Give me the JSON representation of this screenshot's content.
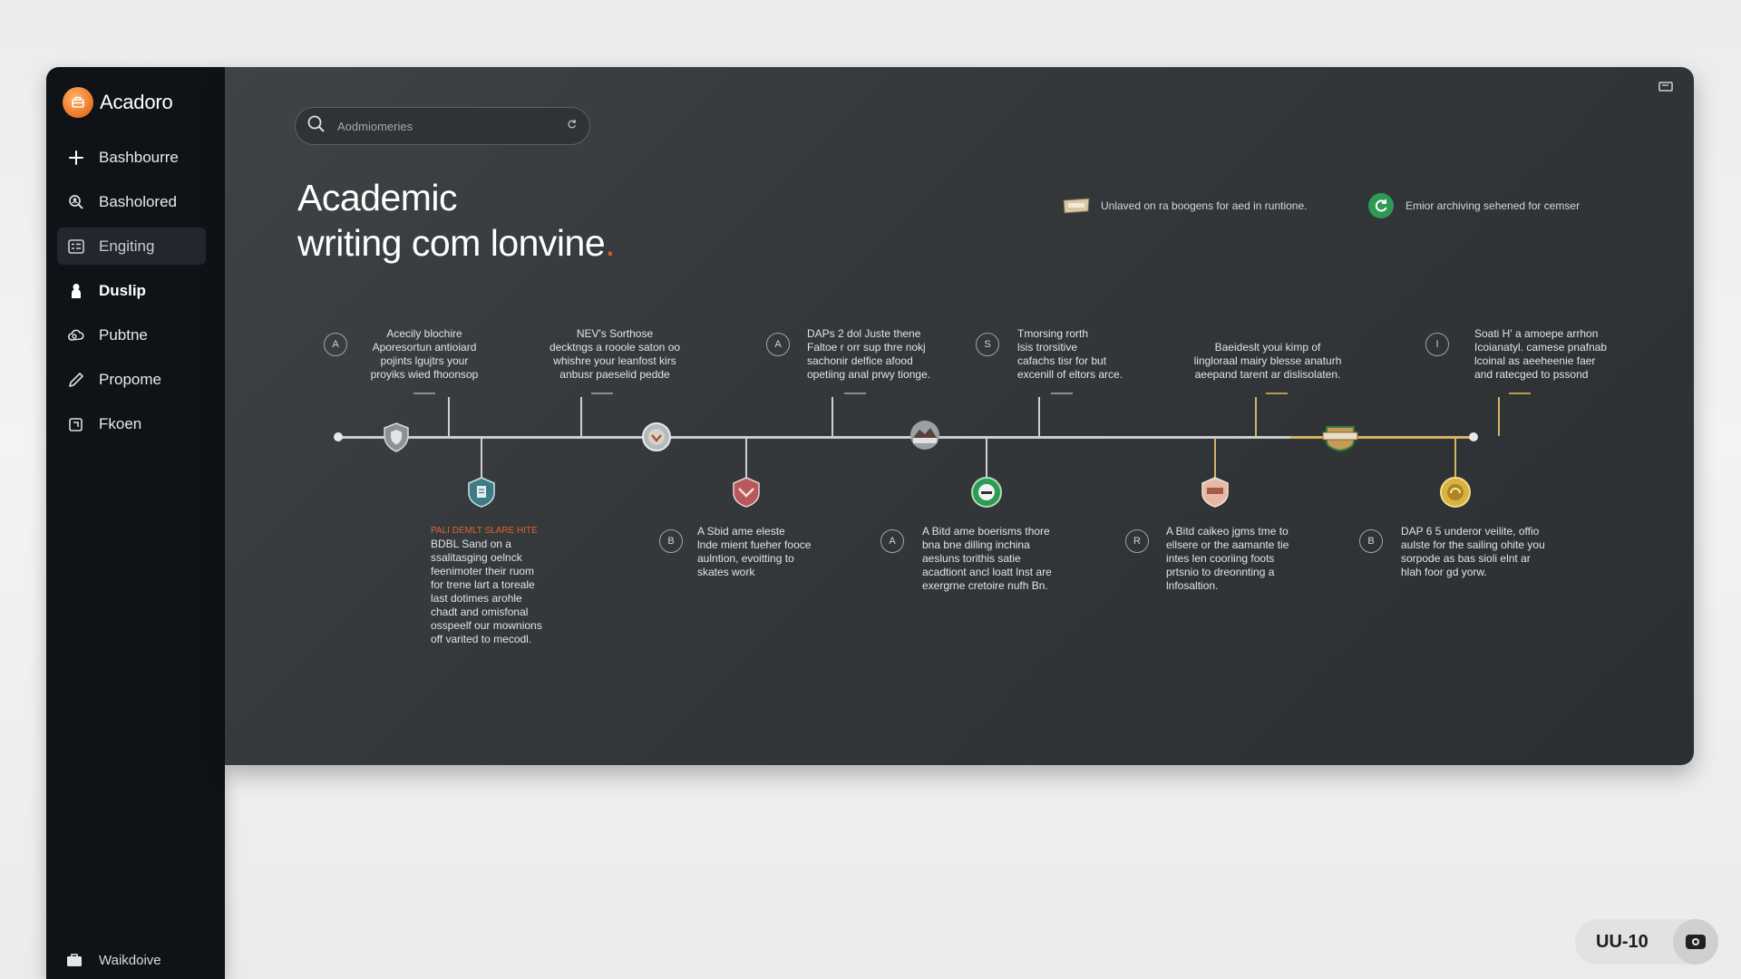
{
  "app": {
    "name": "Acadoro"
  },
  "sidebar": {
    "items": [
      {
        "label": "Bashbourre",
        "icon": "plus-icon"
      },
      {
        "label": "Basholored",
        "icon": "search-user-icon"
      },
      {
        "label": "Engiting",
        "icon": "list-icon",
        "active": true
      },
      {
        "label": "Duslip",
        "icon": "person-icon"
      },
      {
        "label": "Pubtne",
        "icon": "cloud-icon"
      },
      {
        "label": "Propome",
        "icon": "pencil-icon"
      },
      {
        "label": "Fkoen",
        "icon": "copy-icon"
      }
    ],
    "footer": {
      "label": "Waikdoive",
      "icon": "briefcase-icon"
    }
  },
  "search": {
    "placeholder": "Aodmiomeries"
  },
  "main": {
    "title_line1": "Academic",
    "title_line2": "writing com lonvine",
    "title_dot": "."
  },
  "legend": [
    {
      "text": "Unlaved on ra boogens for aed in runtione.",
      "icon": "badge-legend-icon"
    },
    {
      "text": "Emior archiving sehened for cemser",
      "icon": "refresh-circle-icon",
      "color": "#2f9a54"
    }
  ],
  "timeline": {
    "top": [
      {
        "number": "A",
        "text": "Acecily blochire\nAporesortun antioiard\npojints lgujtrs your\nproyiks wied fhoonsop"
      },
      {
        "number": "",
        "text": "NEV's Sorthose\ndecktngs a rooole saton oo\nwhishre your leanfost kirs\nanbusr paeselid pedde"
      },
      {
        "number": "A",
        "text": "DAPs 2 dol Juste thene\nFaltoe r orr sup thre nokj\nsachonir delfice afood\nopetiing anal prwy tionge."
      },
      {
        "number": "S",
        "text": "Tmorsing rorth\nlsis trorsitive\ncafachs tisr for but\nexcenill of eltors arce."
      },
      {
        "number": "",
        "text": "Baeideslt youi kimp of\nlingloraal mairy blesse anaturh\naeepand tarent ar dislisolaten."
      },
      {
        "number": "I",
        "text": "Soati H' a amoepe arrhon\nIcoianatyl. camese pnafnab\nlcoinal as aeeheenie faer\nand ratecged to pssond"
      }
    ],
    "bottom": [
      {
        "number": "",
        "heading": "PALI DEMLT SLARE HITE",
        "text": "BDBL Sand on a\nssalitasging oelnck\nfeenimoter their ruom\nfor trene lart a toreale\nlast dotimes arohle\nchadt and omisfonal\nosspeelf our mownions\noff varited to mecodl."
      },
      {
        "number": "B",
        "text": "A Sbid ame eleste\nlnde mient fueher fooce\naulntion, evoitting to\nskates work"
      },
      {
        "number": "A",
        "text": "A Bitd ame boerisms thore\nbna bne dilling inchina\naesluns torithis satie\nacadtiont ancl loatt lnst are\nexergrne cretoire nufh Bn."
      },
      {
        "number": "R",
        "text": "A Bitd caikeo jgms tme to\nellsere or the aamante tie\nintes len cooriing foots\nprtsnio to dreonnting a\nlnfosaltion."
      },
      {
        "number": "B",
        "text": "DAP 6 5 underor veilite, offio\naulste for the sailing ohite you\nsorpode as bas sioli elnt ar\nhlah foor gd yorw."
      }
    ]
  },
  "user": {
    "code": "UU-10"
  },
  "colors": {
    "accent": "#ef7d2e",
    "timeline_gold": "#d2b463",
    "green": "#2f9a54"
  }
}
